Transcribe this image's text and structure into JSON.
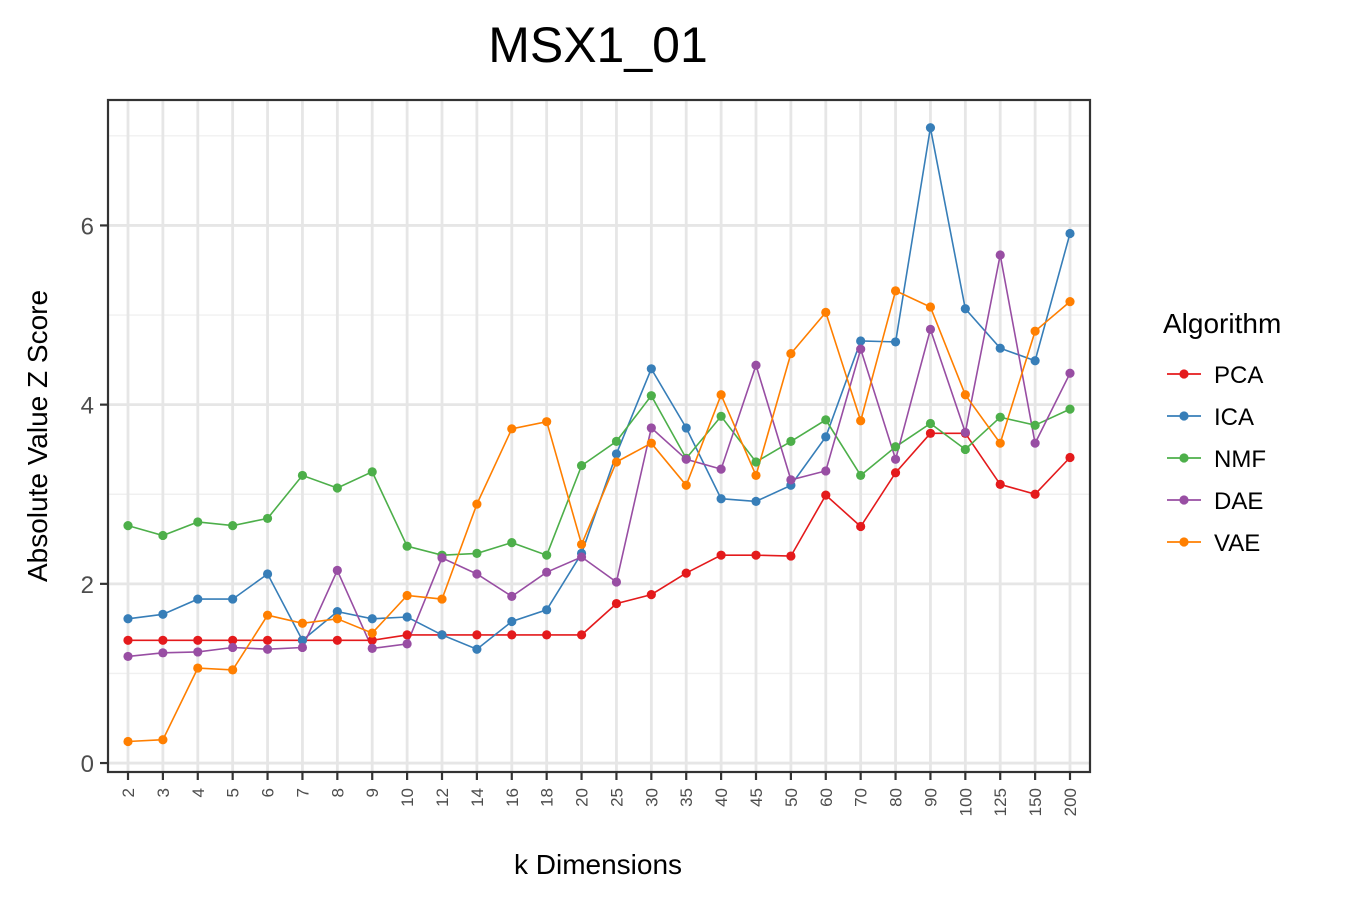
{
  "chart_data": {
    "type": "line",
    "title": "MSX1_01",
    "xlabel": "k Dimensions",
    "ylabel": "Absolute Value Z Score",
    "categories": [
      "2",
      "3",
      "4",
      "5",
      "6",
      "7",
      "8",
      "9",
      "10",
      "12",
      "14",
      "16",
      "18",
      "20",
      "25",
      "30",
      "35",
      "40",
      "45",
      "50",
      "60",
      "70",
      "80",
      "90",
      "100",
      "125",
      "150",
      "200"
    ],
    "ylim": [
      -0.1,
      7.4
    ],
    "yticks": [
      0,
      2,
      4,
      6
    ],
    "grid": true,
    "legend": {
      "title": "Algorithm",
      "position": "right"
    },
    "series": [
      {
        "name": "PCA",
        "color": "#e41a1c",
        "values": [
          1.37,
          1.37,
          1.37,
          1.37,
          1.37,
          1.37,
          1.37,
          1.37,
          1.43,
          1.43,
          1.43,
          1.43,
          1.43,
          1.43,
          1.78,
          1.88,
          2.12,
          2.32,
          2.32,
          2.31,
          2.99,
          2.64,
          3.24,
          3.68,
          3.68,
          3.11,
          3.0,
          3.41
        ]
      },
      {
        "name": "ICA",
        "color": "#377eb8",
        "values": [
          1.61,
          1.66,
          1.83,
          1.83,
          2.11,
          1.37,
          1.69,
          1.61,
          1.63,
          1.43,
          1.27,
          1.58,
          1.71,
          2.34,
          3.45,
          4.4,
          3.74,
          2.95,
          2.92,
          3.1,
          3.64,
          4.71,
          4.7,
          7.09,
          5.07,
          4.63,
          4.49,
          5.91
        ]
      },
      {
        "name": "NMF",
        "color": "#4daf4a",
        "values": [
          2.65,
          2.54,
          2.69,
          2.65,
          2.73,
          3.21,
          3.07,
          3.25,
          2.42,
          2.32,
          2.34,
          2.46,
          2.32,
          3.32,
          3.59,
          4.1,
          3.4,
          3.87,
          3.36,
          3.59,
          3.83,
          3.21,
          3.53,
          3.79,
          3.5,
          3.86,
          3.77,
          3.95
        ]
      },
      {
        "name": "DAE",
        "color": "#984ea3",
        "values": [
          1.19,
          1.23,
          1.24,
          1.29,
          1.27,
          1.29,
          2.15,
          1.28,
          1.33,
          2.29,
          2.11,
          1.86,
          2.13,
          2.3,
          2.02,
          3.74,
          3.39,
          3.28,
          4.44,
          3.16,
          3.26,
          4.62,
          3.39,
          4.84,
          3.69,
          5.67,
          3.57,
          4.35
        ]
      },
      {
        "name": "VAE",
        "color": "#ff7f00",
        "values": [
          0.24,
          0.26,
          1.06,
          1.04,
          1.65,
          1.56,
          1.61,
          1.45,
          1.87,
          1.83,
          2.89,
          3.73,
          3.81,
          2.44,
          3.36,
          3.57,
          3.1,
          4.11,
          3.21,
          4.57,
          5.03,
          3.82,
          5.27,
          5.09,
          4.11,
          3.57,
          4.82,
          5.15
        ]
      }
    ]
  }
}
